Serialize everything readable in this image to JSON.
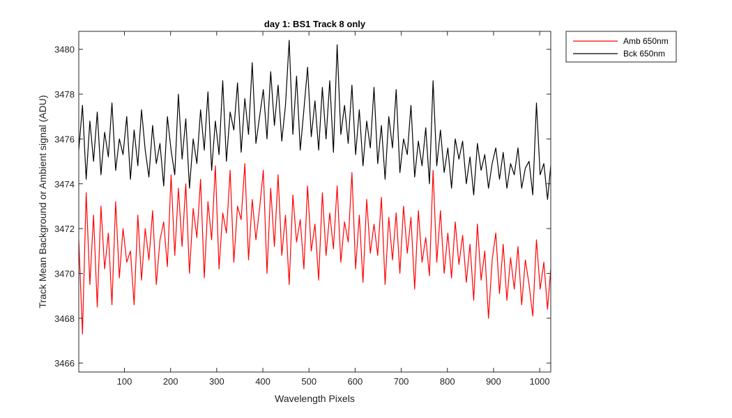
{
  "chart_data": {
    "type": "line",
    "title": "day 1: BS1   Track 8 only",
    "xlabel": "Wavelength Pixels",
    "ylabel": "Track Mean Background or Ambient signal (ADU)",
    "xlim": [
      1,
      1024
    ],
    "ylim": [
      3465.6,
      3480.8
    ],
    "xticks": [
      100,
      200,
      300,
      400,
      500,
      600,
      700,
      800,
      900,
      1000
    ],
    "yticks": [
      3466,
      3468,
      3470,
      3472,
      3474,
      3476,
      3478,
      3480
    ],
    "grid": false,
    "legend_position": "outside-top-right",
    "series": [
      {
        "name": "Amb 650nm",
        "color": "#ff0000",
        "note": "noisy trace sampled every 8 pixels (approximate)",
        "x": [
          1,
          9,
          17,
          25,
          33,
          41,
          49,
          57,
          65,
          73,
          81,
          89,
          97,
          105,
          113,
          121,
          129,
          137,
          145,
          153,
          161,
          169,
          177,
          185,
          193,
          201,
          209,
          217,
          225,
          233,
          241,
          249,
          257,
          265,
          273,
          281,
          289,
          297,
          305,
          313,
          321,
          329,
          337,
          345,
          353,
          361,
          369,
          377,
          385,
          393,
          401,
          409,
          417,
          425,
          433,
          441,
          449,
          457,
          465,
          473,
          481,
          489,
          497,
          505,
          513,
          521,
          529,
          537,
          545,
          553,
          561,
          569,
          577,
          585,
          593,
          601,
          609,
          617,
          625,
          633,
          641,
          649,
          657,
          665,
          673,
          681,
          689,
          697,
          705,
          713,
          721,
          729,
          737,
          745,
          753,
          761,
          769,
          777,
          785,
          793,
          801,
          809,
          817,
          825,
          833,
          841,
          849,
          857,
          865,
          873,
          881,
          889,
          897,
          905,
          913,
          921,
          929,
          937,
          945,
          953,
          961,
          969,
          977,
          985,
          993,
          1001,
          1009,
          1017,
          1024
        ],
        "values": [
          3471.5,
          3467.3,
          3473.6,
          3469.5,
          3472.6,
          3468.5,
          3473.0,
          3470.2,
          3471.8,
          3468.6,
          3473.2,
          3469.8,
          3472.0,
          3470.5,
          3471.0,
          3468.6,
          3472.6,
          3469.7,
          3472.0,
          3470.6,
          3472.8,
          3469.5,
          3471.5,
          3472.3,
          3470.3,
          3474.4,
          3470.8,
          3473.8,
          3471.2,
          3474.0,
          3470.0,
          3472.9,
          3471.6,
          3474.2,
          3469.8,
          3473.2,
          3471.5,
          3474.8,
          3470.2,
          3472.7,
          3471.8,
          3474.6,
          3470.5,
          3473.0,
          3472.4,
          3474.9,
          3470.6,
          3473.3,
          3471.5,
          3472.9,
          3474.6,
          3470.0,
          3473.8,
          3471.2,
          3474.4,
          3470.8,
          3472.6,
          3469.5,
          3473.5,
          3471.4,
          3472.4,
          3470.2,
          3473.9,
          3471.0,
          3472.2,
          3469.7,
          3473.6,
          3470.8,
          3472.7,
          3471.1,
          3473.9,
          3470.5,
          3472.3,
          3471.4,
          3474.5,
          3470.2,
          3472.6,
          3469.6,
          3473.3,
          3470.9,
          3472.2,
          3470.8,
          3473.4,
          3469.5,
          3472.5,
          3470.6,
          3472.7,
          3470.0,
          3473.0,
          3470.9,
          3472.5,
          3469.3,
          3472.8,
          3470.5,
          3471.6,
          3469.9,
          3474.6,
          3470.5,
          3472.8,
          3470.0,
          3471.8,
          3469.8,
          3472.3,
          3470.4,
          3471.7,
          3469.6,
          3471.3,
          3468.8,
          3472.2,
          3469.7,
          3471.0,
          3468.0,
          3470.6,
          3471.8,
          3469.1,
          3471.3,
          3468.8,
          3470.7,
          3469.3,
          3471.2,
          3468.6,
          3470.6,
          3469.5,
          3468.1,
          3471.5,
          3469.3,
          3470.5,
          3468.4,
          3470.2
        ]
      },
      {
        "name": "Bck 650nm",
        "color": "#000000",
        "note": "noisy trace sampled every 8 pixels (approximate)",
        "x": [
          1,
          9,
          17,
          25,
          33,
          41,
          49,
          57,
          65,
          73,
          81,
          89,
          97,
          105,
          113,
          121,
          129,
          137,
          145,
          153,
          161,
          169,
          177,
          185,
          193,
          201,
          209,
          217,
          225,
          233,
          241,
          249,
          257,
          265,
          273,
          281,
          289,
          297,
          305,
          313,
          321,
          329,
          337,
          345,
          353,
          361,
          369,
          377,
          385,
          393,
          401,
          409,
          417,
          425,
          433,
          441,
          449,
          457,
          465,
          473,
          481,
          489,
          497,
          505,
          513,
          521,
          529,
          537,
          545,
          553,
          561,
          569,
          577,
          585,
          593,
          601,
          609,
          617,
          625,
          633,
          641,
          649,
          657,
          665,
          673,
          681,
          689,
          697,
          705,
          713,
          721,
          729,
          737,
          745,
          753,
          761,
          769,
          777,
          785,
          793,
          801,
          809,
          817,
          825,
          833,
          841,
          849,
          857,
          865,
          873,
          881,
          889,
          897,
          905,
          913,
          921,
          929,
          937,
          945,
          953,
          961,
          969,
          977,
          985,
          993,
          1001,
          1009,
          1017,
          1024
        ],
        "values": [
          3475.5,
          3477.5,
          3474.2,
          3476.8,
          3475.0,
          3477.2,
          3474.4,
          3476.3,
          3475.2,
          3477.6,
          3474.6,
          3476.0,
          3475.3,
          3477.0,
          3474.2,
          3476.4,
          3474.8,
          3477.3,
          3475.5,
          3474.3,
          3476.6,
          3474.9,
          3475.8,
          3473.9,
          3477.0,
          3475.5,
          3474.4,
          3478.0,
          3475.1,
          3476.9,
          3473.8,
          3476.0,
          3474.9,
          3477.3,
          3475.5,
          3478.1,
          3474.6,
          3476.8,
          3475.3,
          3478.6,
          3475.0,
          3477.2,
          3476.4,
          3478.5,
          3475.4,
          3477.8,
          3476.2,
          3479.4,
          3475.8,
          3477.0,
          3478.2,
          3476.0,
          3479.0,
          3476.6,
          3478.4,
          3475.9,
          3477.5,
          3480.4,
          3476.2,
          3478.8,
          3475.5,
          3477.3,
          3479.2,
          3476.1,
          3477.7,
          3475.5,
          3478.3,
          3476.0,
          3478.6,
          3475.4,
          3480.2,
          3476.2,
          3477.5,
          3475.8,
          3478.4,
          3475.3,
          3477.3,
          3474.8,
          3476.8,
          3475.6,
          3478.3,
          3474.9,
          3476.6,
          3474.2,
          3477.0,
          3475.6,
          3478.2,
          3474.5,
          3476.0,
          3475.3,
          3477.5,
          3474.3,
          3475.9,
          3474.8,
          3476.5,
          3474.0,
          3478.6,
          3474.8,
          3476.4,
          3474.5,
          3475.6,
          3473.8,
          3476.0,
          3475.1,
          3475.9,
          3474.0,
          3475.2,
          3473.5,
          3475.8,
          3474.6,
          3475.3,
          3473.8,
          3474.9,
          3475.6,
          3474.2,
          3475.4,
          3473.8,
          3474.9,
          3474.4,
          3475.6,
          3473.8,
          3474.7,
          3475.0,
          3473.5,
          3477.6,
          3474.4,
          3474.9,
          3473.3,
          3474.8
        ]
      }
    ]
  }
}
